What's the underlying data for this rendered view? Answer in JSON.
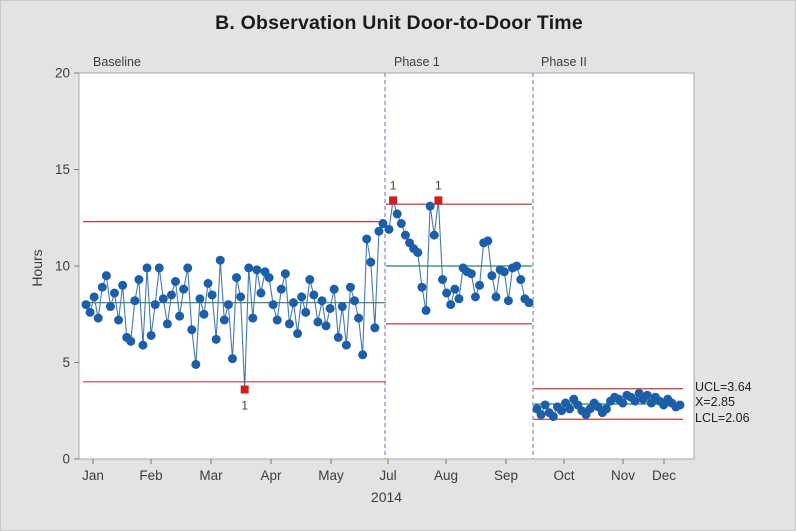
{
  "window": {
    "title": "B. Observation Unit Door-to-Door Time"
  },
  "chart_data": {
    "type": "line",
    "subtype": "individuals-control-chart-with-stages",
    "title": "B. Observation Unit Door-to-Door Time",
    "xlabel": "2014",
    "ylabel": "Hours",
    "ylim": [
      0,
      20
    ],
    "yticks": [
      0,
      5,
      10,
      15,
      20
    ],
    "grid": false,
    "legend": "none",
    "x_ticks": [
      {
        "label": "Jan",
        "pos": 0.0228
      },
      {
        "label": "Feb",
        "pos": 0.1171
      },
      {
        "label": "Mar",
        "pos": 0.2146
      },
      {
        "label": "Apr",
        "pos": 0.3122
      },
      {
        "label": "May",
        "pos": 0.4098
      },
      {
        "label": "Jul",
        "pos": 0.5024
      },
      {
        "label": "Aug",
        "pos": 0.5967
      },
      {
        "label": "Sep",
        "pos": 0.6943
      },
      {
        "label": "Oct",
        "pos": 0.7886
      },
      {
        "label": "Nov",
        "pos": 0.8846
      },
      {
        "label": "Dec",
        "pos": 0.9512
      }
    ],
    "phase_boundaries": [
      0.4976,
      0.7382
    ],
    "phases": [
      {
        "name": "Baseline",
        "x0": 0.0114,
        "x1": 0.4943,
        "ucl": 12.3,
        "center": 8.1,
        "lcl": 4.0,
        "values": [
          8.0,
          7.6,
          8.4,
          7.3,
          8.9,
          9.5,
          7.9,
          8.6,
          7.2,
          9.0,
          6.3,
          6.1,
          8.2,
          9.3,
          5.9,
          9.9,
          6.4,
          8.0,
          9.9,
          8.3,
          7.0,
          8.5,
          9.2,
          7.4,
          8.8,
          9.9,
          6.7,
          4.9,
          8.3,
          7.5,
          9.1,
          8.5,
          6.2,
          10.3,
          7.2,
          8.0,
          5.2,
          9.4,
          8.4,
          3.6,
          9.9,
          7.3,
          9.8,
          8.6,
          9.7,
          9.4,
          8.0,
          7.2,
          8.8,
          9.6,
          7.0,
          8.1,
          6.5,
          8.4,
          7.6,
          9.3,
          8.5,
          7.1,
          8.2,
          6.9,
          7.8,
          8.8,
          6.3,
          7.9,
          5.9,
          8.9,
          8.2,
          7.3,
          5.4,
          11.4,
          10.2,
          6.8,
          11.8,
          12.2
        ],
        "out_of_control": [
          {
            "index": 39,
            "label": "1",
            "side": "below"
          }
        ]
      },
      {
        "name": "Phase 1",
        "x0": 0.504,
        "x1": 0.7317,
        "ucl": 13.2,
        "center": 10.0,
        "lcl": 7.0,
        "values": [
          11.9,
          13.4,
          12.7,
          12.2,
          11.6,
          11.2,
          10.9,
          10.7,
          8.9,
          7.7,
          13.1,
          11.6,
          13.4,
          9.3,
          8.6,
          8.0,
          8.8,
          8.3,
          9.9,
          9.7,
          9.6,
          8.4,
          9.0,
          11.2,
          11.3,
          9.5,
          8.4,
          9.8,
          9.7,
          8.2,
          9.9,
          10.0,
          9.3,
          8.3,
          8.1
        ],
        "out_of_control": [
          {
            "index": 1,
            "label": "1",
            "side": "above"
          },
          {
            "index": 12,
            "label": "1",
            "side": "above"
          }
        ]
      },
      {
        "name": "Phase II",
        "x0": 0.7447,
        "x1": 0.9772,
        "ucl": 3.64,
        "center": 2.85,
        "lcl": 2.06,
        "values": [
          2.6,
          2.3,
          2.8,
          2.4,
          2.2,
          2.7,
          2.5,
          2.9,
          2.6,
          3.1,
          2.8,
          2.5,
          2.3,
          2.6,
          2.9,
          2.7,
          2.4,
          2.6,
          3.0,
          3.2,
          3.1,
          2.9,
          3.3,
          3.2,
          3.0,
          3.4,
          3.1,
          3.3,
          2.9,
          3.2,
          3.0,
          2.8,
          3.1,
          2.9,
          2.7,
          2.8
        ],
        "out_of_control": []
      }
    ],
    "annotations": {
      "lines": [
        "UCL=3.64",
        "X=2.85",
        "LCL=2.06"
      ]
    },
    "colors": {
      "point": "#1c5fa8",
      "connector": "#4479b2",
      "limit_line": "#bf3f3f",
      "center_line": "#2d7d66",
      "ooc_marker": "#d21d1d",
      "phase_line": "#7a7ab8",
      "background": "#e3e3e3",
      "plot_background": "#ffffff",
      "plot_border": "#a9a9a9",
      "tick_text": "#3d3d3d"
    }
  }
}
